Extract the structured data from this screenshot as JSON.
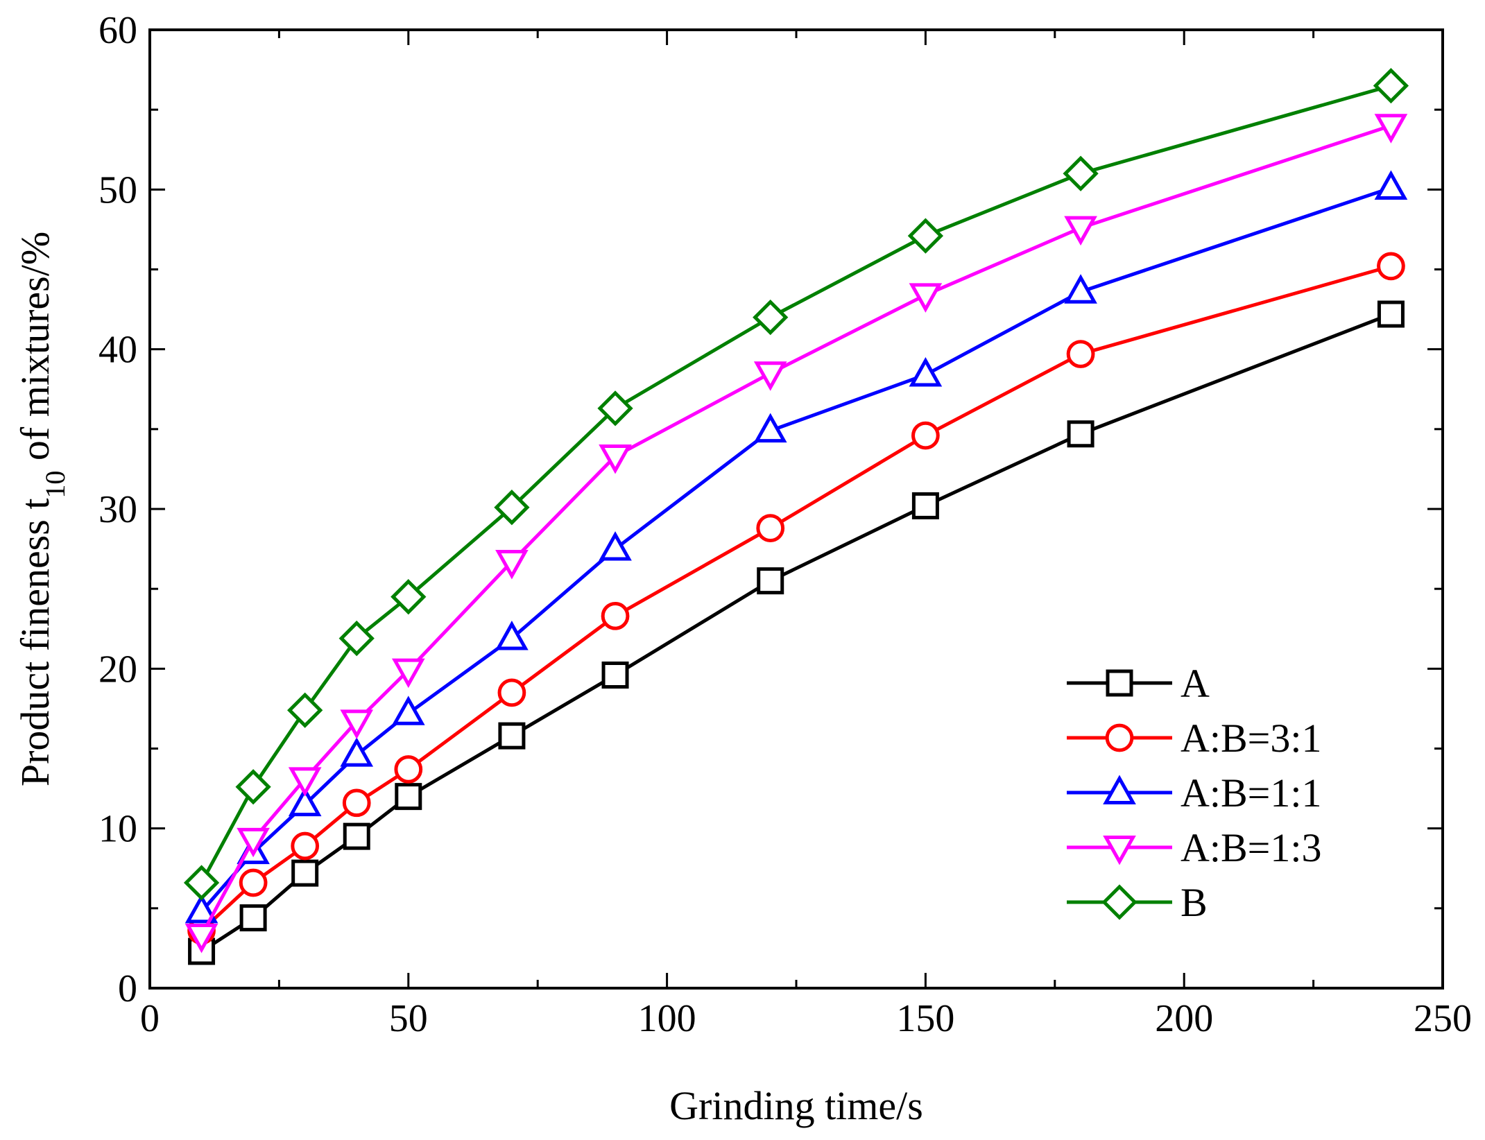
{
  "chart_data": {
    "type": "line",
    "title": "",
    "xlabel": "Grinding time/s",
    "ylabel": {
      "prefix": "Product fineness t",
      "subscript": "10",
      "suffix": " of mixtures/%"
    },
    "xlim": [
      0,
      250
    ],
    "ylim": [
      0,
      60
    ],
    "xticks": [
      "0",
      "50",
      "100",
      "150",
      "200",
      "250"
    ],
    "yticks": [
      "0",
      "10",
      "20",
      "30",
      "40",
      "50",
      "60"
    ],
    "x": [
      10,
      20,
      30,
      40,
      50,
      70,
      90,
      120,
      150,
      180,
      240
    ],
    "legend_position": "lower-right",
    "series": [
      {
        "name": "A",
        "marker": "square",
        "color": "#000000",
        "values": [
          2.3,
          4.4,
          7.2,
          9.5,
          12.0,
          15.8,
          19.6,
          25.5,
          30.2,
          34.7,
          42.2
        ]
      },
      {
        "name": "A:B=3:1",
        "marker": "circle",
        "color": "#ff0000",
        "values": [
          3.6,
          6.6,
          8.9,
          11.6,
          13.7,
          18.5,
          23.3,
          28.8,
          34.6,
          39.7,
          45.2
        ]
      },
      {
        "name": "A:B=1:1",
        "marker": "triangle-up",
        "color": "#0000ff",
        "values": [
          4.8,
          8.5,
          11.5,
          14.6,
          17.2,
          21.9,
          27.5,
          34.9,
          38.4,
          43.6,
          50.1
        ]
      },
      {
        "name": "A:B=1:3",
        "marker": "triangle-down",
        "color": "#ff00ff",
        "values": [
          3.3,
          9.3,
          13.1,
          16.7,
          19.9,
          26.7,
          33.3,
          38.5,
          43.4,
          47.6,
          54.0
        ]
      },
      {
        "name": "B",
        "marker": "diamond",
        "color": "#008000",
        "values": [
          6.6,
          12.6,
          17.4,
          21.9,
          24.5,
          30.1,
          36.3,
          42.0,
          47.1,
          51.0,
          56.5
        ]
      }
    ]
  }
}
